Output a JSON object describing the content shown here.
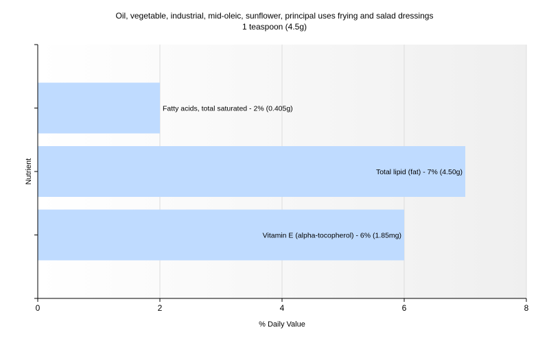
{
  "chart_data": {
    "type": "bar",
    "orientation": "horizontal",
    "title": "Oil, vegetable, industrial, mid-oleic, sunflower, principal uses frying and salad dressings",
    "subtitle": "1 teaspoon (4.5g)",
    "xlabel": "% Daily Value",
    "ylabel": "Nutrient",
    "xlim": [
      0,
      8
    ],
    "xticks": [
      "0",
      "2",
      "4",
      "6",
      "8"
    ],
    "grid": true,
    "bar_color": "#bfdbff",
    "categories": [
      "Fatty acids, total saturated",
      "Total lipid (fat)",
      "Vitamin E (alpha-tocopherol)"
    ],
    "values": [
      2,
      7,
      6
    ],
    "labels": [
      "Fatty acids, total saturated - 2% (0.405g)",
      "Total lipid (fat) - 7% (4.50g)",
      "Vitamin E (alpha-tocopherol) - 6% (1.85mg)"
    ]
  }
}
